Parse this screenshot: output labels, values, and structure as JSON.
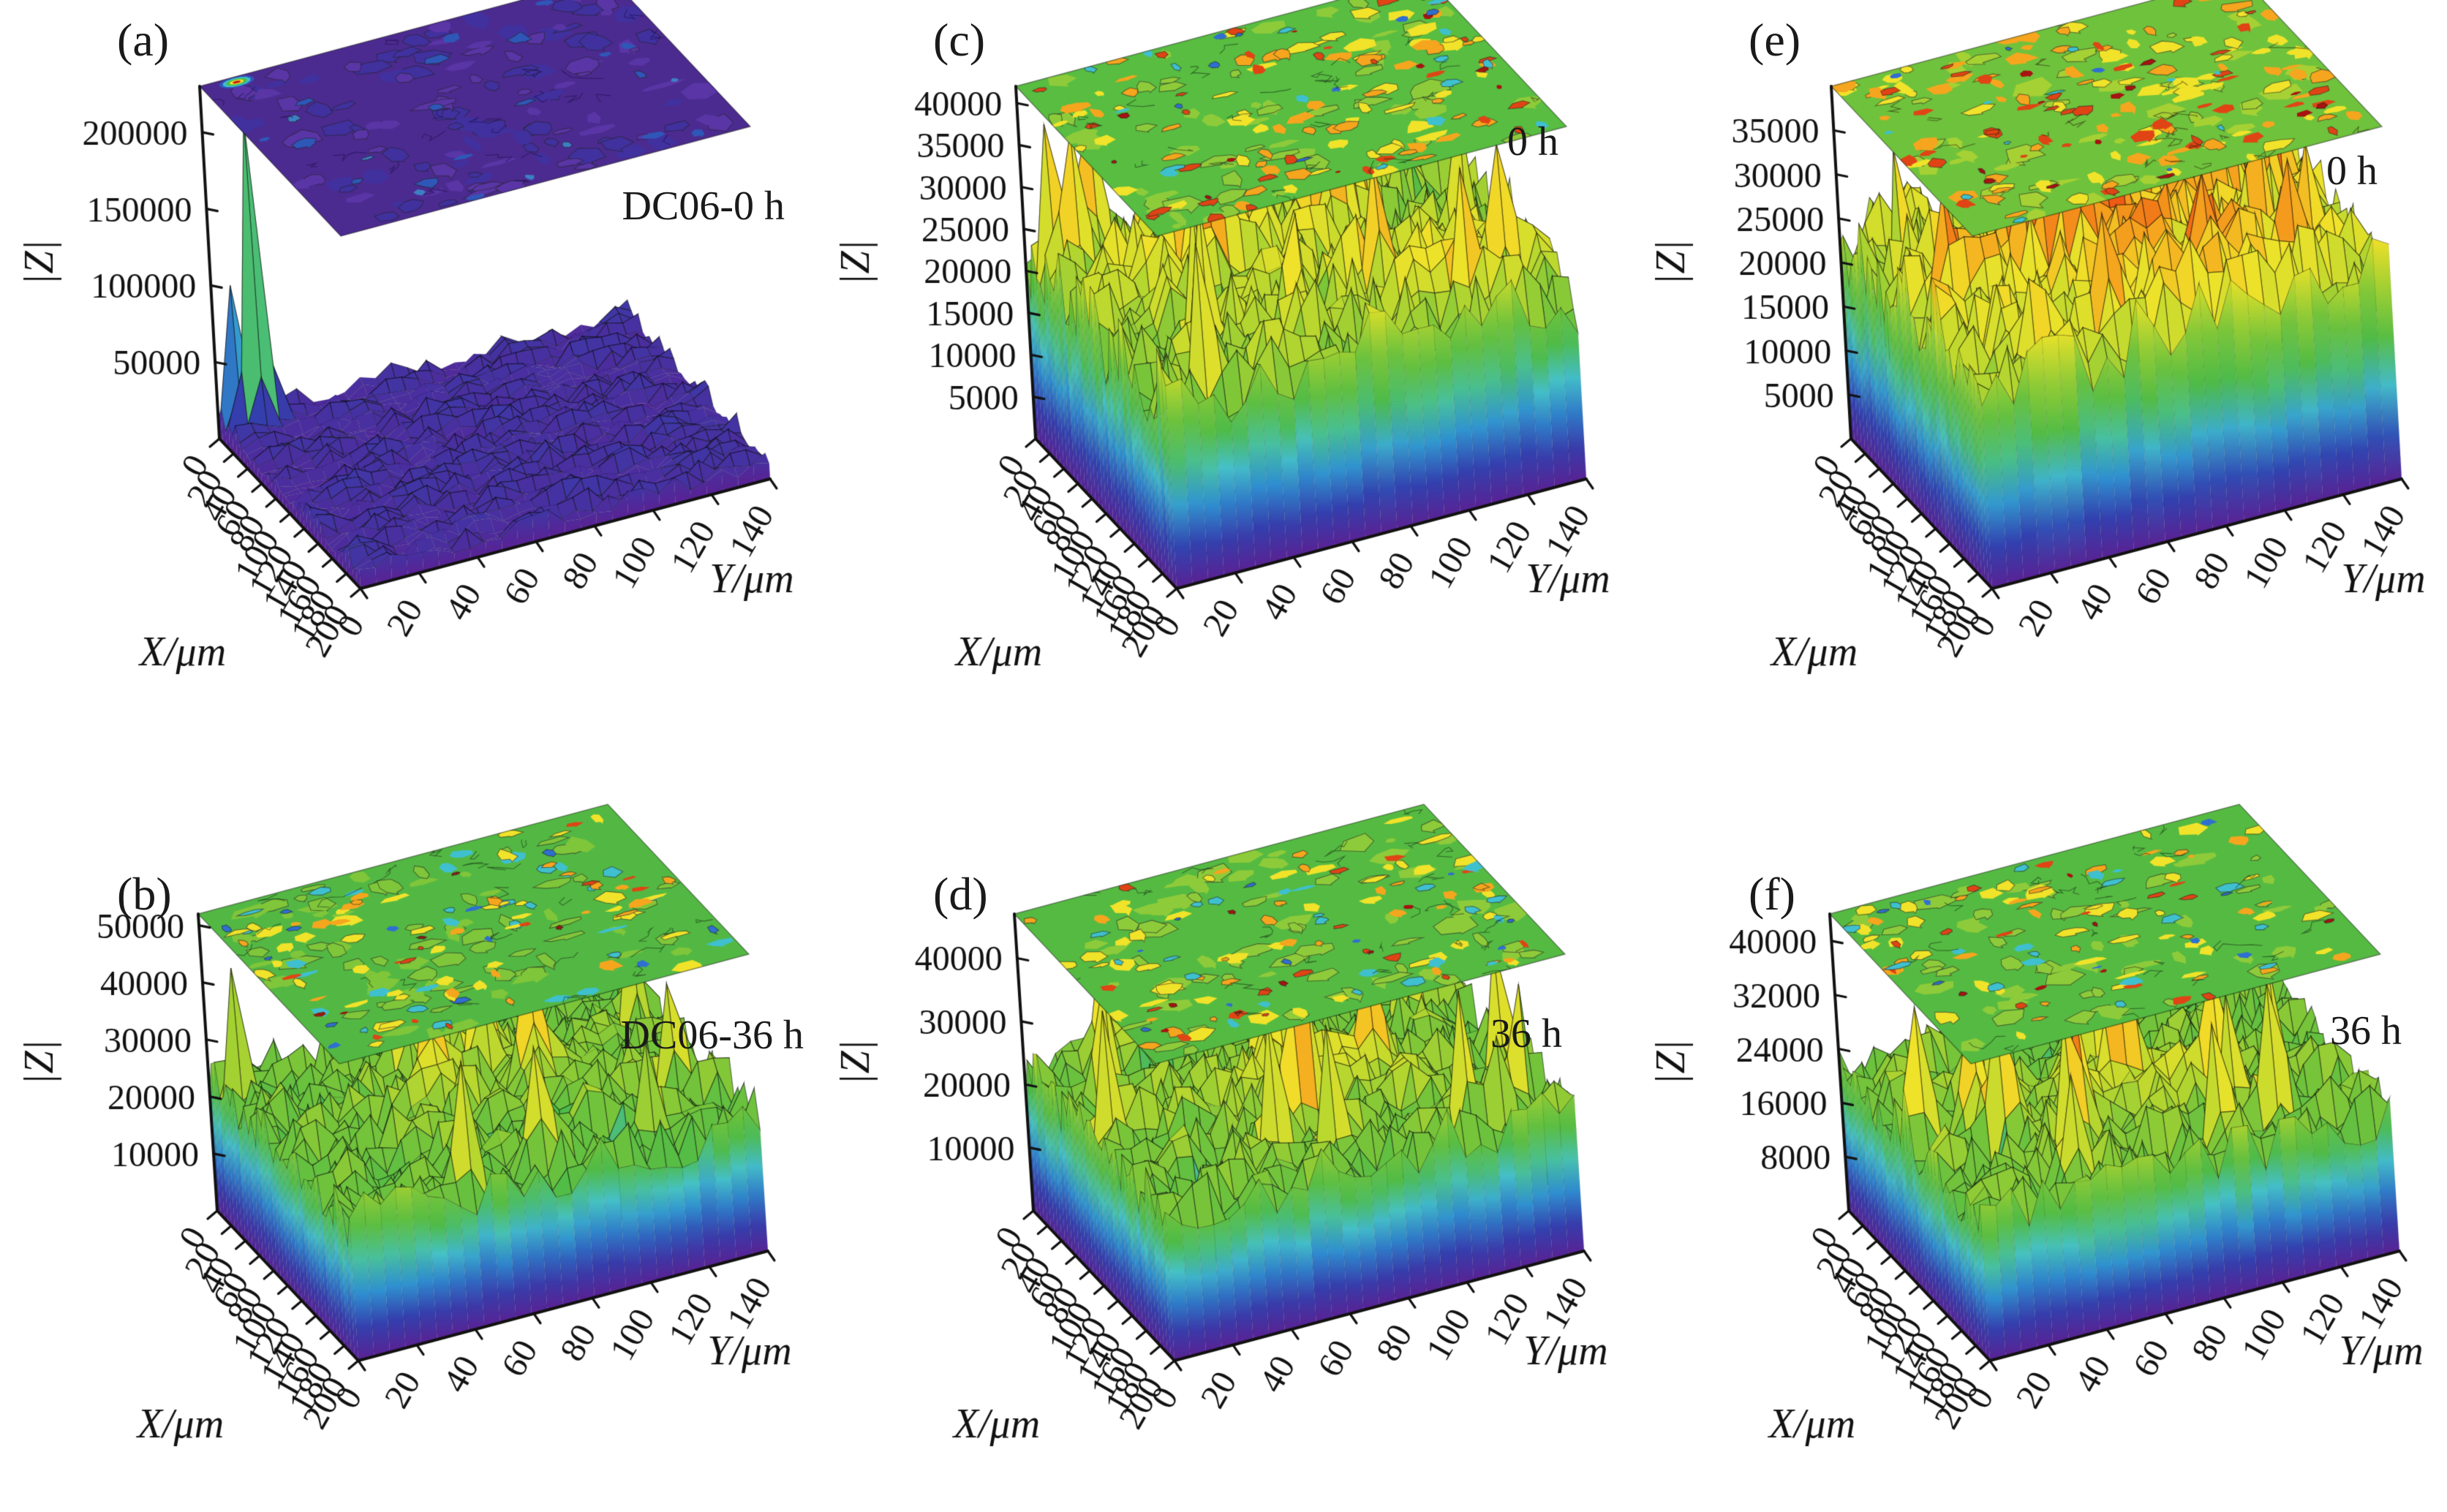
{
  "figure": {
    "x_label": "X/μm",
    "y_label": "Y/μm",
    "z_label": "|Z|",
    "x_ticks": [
      0,
      20,
      40,
      60,
      80,
      100,
      120,
      140,
      160,
      180,
      200
    ],
    "y_ticks": [
      0,
      20,
      40,
      60,
      80,
      100,
      120,
      140
    ]
  },
  "panels": [
    {
      "id": "a",
      "label": "(a)",
      "annotation": "DC06-0 h",
      "x_label": "X/μm",
      "y_label": "Y/μm",
      "z_label": "|Z|",
      "x_ticks": [
        0,
        20,
        40,
        60,
        80,
        100,
        120,
        140,
        160,
        180,
        200
      ],
      "y_ticks": [
        0,
        20,
        40,
        60,
        80,
        100,
        120,
        140
      ],
      "z_ticks": [
        50000,
        100000,
        150000,
        200000
      ],
      "z_top": 230000,
      "surface": {
        "seed": 101,
        "base": 0.055,
        "variance": 0.03,
        "spike_count": 0,
        "spike_amp": 0,
        "dip_count": 0,
        "fixed_spikes": [
          [
            3,
            2,
            0.92
          ],
          [
            1,
            1,
            0.4
          ]
        ],
        "hot_spots": []
      },
      "slab": {
        "base_color": "#4c2b90",
        "squiggle": "rgba(25,12,70,0.55)",
        "ring": true,
        "spots": [
          [
            "#41319f",
            70,
            0.012,
            0.05
          ],
          [
            "#5a35a5",
            60,
            0.012,
            0.05
          ],
          [
            "#2f57b8",
            18,
            0.01,
            0.03
          ],
          [
            "#3d7fc4",
            6,
            0.008,
            0.02
          ]
        ]
      }
    },
    {
      "id": "b",
      "label": "(b)",
      "annotation": "DC06-36 h",
      "x_label": "X/μm",
      "y_label": "Y/μm",
      "z_label": "|Z|",
      "x_ticks": [
        0,
        20,
        40,
        60,
        80,
        100,
        120,
        140,
        160,
        180,
        200
      ],
      "y_ticks": [
        0,
        20,
        40,
        60,
        80,
        100,
        120,
        140
      ],
      "z_ticks": [
        10000,
        20000,
        30000,
        40000,
        50000
      ],
      "z_top": 52000,
      "surface": {
        "seed": 202,
        "base": 0.48,
        "variance": 0.09,
        "spike_count": 14,
        "spike_amp": 0.42,
        "dip_count": 8,
        "fixed_spikes": [],
        "hot_spots": [
          [
            20,
            13,
            0.1,
            9
          ]
        ]
      },
      "slab": {
        "base_color": "#53b843",
        "squiggle": "rgba(20,40,20,0.55)",
        "ring": false,
        "spots": [
          [
            "#7fc63a",
            80,
            0.012,
            0.05
          ],
          [
            "#3fc0cf",
            30,
            0.01,
            0.035
          ],
          [
            "#2f6fd0",
            14,
            0.008,
            0.025
          ],
          [
            "#f0e32a",
            40,
            0.01,
            0.04
          ],
          [
            "#f5a61e",
            22,
            0.008,
            0.03
          ],
          [
            "#e04414",
            12,
            0.006,
            0.022
          ],
          [
            "#8e1d12",
            5,
            0.005,
            0.014
          ]
        ]
      }
    },
    {
      "id": "c",
      "label": "(c)",
      "annotation": "0 h",
      "x_label": "X/μm",
      "y_label": "Y/μm",
      "z_label": "|Z|",
      "x_ticks": [
        0,
        20,
        40,
        60,
        80,
        100,
        120,
        140,
        160,
        180,
        200
      ],
      "y_ticks": [
        0,
        20,
        40,
        60,
        80,
        100,
        120,
        140
      ],
      "z_ticks": [
        5000,
        10000,
        15000,
        20000,
        25000,
        30000,
        35000,
        40000
      ],
      "z_top": 42000,
      "surface": {
        "seed": 303,
        "base": 0.54,
        "variance": 0.11,
        "spike_count": 20,
        "spike_amp": 0.45,
        "dip_count": 6,
        "fixed_spikes": [],
        "hot_spots": [
          [
            15,
            8,
            0.16,
            7
          ],
          [
            30,
            18,
            0.12,
            8
          ]
        ]
      },
      "slab": {
        "base_color": "#58bd41",
        "squiggle": "rgba(20,40,20,0.55)",
        "ring": false,
        "spots": [
          [
            "#8ecb3a",
            60,
            0.012,
            0.05
          ],
          [
            "#f0e32a",
            45,
            0.01,
            0.04
          ],
          [
            "#f5a61e",
            40,
            0.01,
            0.035
          ],
          [
            "#e04414",
            30,
            0.008,
            0.03
          ],
          [
            "#a61310",
            10,
            0.006,
            0.018
          ],
          [
            "#3fc0cf",
            16,
            0.008,
            0.03
          ],
          [
            "#2f6fd0",
            8,
            0.006,
            0.02
          ]
        ]
      }
    },
    {
      "id": "d",
      "label": "(d)",
      "annotation": "36 h",
      "x_label": "X/μm",
      "y_label": "Y/μm",
      "z_label": "|Z|",
      "x_ticks": [
        0,
        20,
        40,
        60,
        80,
        100,
        120,
        140,
        160,
        180,
        200
      ],
      "y_ticks": [
        0,
        20,
        40,
        60,
        80,
        100,
        120,
        140
      ],
      "z_ticks": [
        10000,
        20000,
        30000,
        40000
      ],
      "z_top": 47000,
      "surface": {
        "seed": 404,
        "base": 0.5,
        "variance": 0.1,
        "spike_count": 16,
        "spike_amp": 0.45,
        "dip_count": 7,
        "fixed_spikes": [],
        "hot_spots": [
          [
            22,
            12,
            0.12,
            8
          ]
        ]
      },
      "slab": {
        "base_color": "#55ba42",
        "squiggle": "rgba(20,40,20,0.55)",
        "ring": false,
        "spots": [
          [
            "#8ecb3a",
            70,
            0.012,
            0.05
          ],
          [
            "#f0e32a",
            40,
            0.01,
            0.04
          ],
          [
            "#f5a61e",
            26,
            0.008,
            0.03
          ],
          [
            "#e04414",
            16,
            0.007,
            0.026
          ],
          [
            "#a61310",
            7,
            0.006,
            0.016
          ],
          [
            "#3fc0cf",
            22,
            0.008,
            0.03
          ],
          [
            "#2f6fd0",
            10,
            0.006,
            0.02
          ]
        ]
      }
    },
    {
      "id": "e",
      "label": "(e)",
      "annotation": "0 h",
      "x_label": "X/μm",
      "y_label": "Y/μm",
      "z_label": "|Z|",
      "x_ticks": [
        0,
        20,
        40,
        60,
        80,
        100,
        120,
        140,
        160,
        180,
        200
      ],
      "y_ticks": [
        0,
        20,
        40,
        60,
        80,
        100,
        120,
        140
      ],
      "z_ticks": [
        5000,
        10000,
        15000,
        20000,
        25000,
        30000,
        35000
      ],
      "z_top": 40000,
      "surface": {
        "seed": 505,
        "base": 0.6,
        "variance": 0.12,
        "spike_count": 18,
        "spike_amp": 0.38,
        "dip_count": 4,
        "fixed_spikes": [],
        "hot_spots": [
          [
            22,
            10,
            0.18,
            9
          ],
          [
            34,
            16,
            0.15,
            7
          ],
          [
            12,
            18,
            0.12,
            8
          ]
        ]
      },
      "slab": {
        "base_color": "#6fc23c",
        "squiggle": "rgba(40,30,10,0.55)",
        "ring": false,
        "spots": [
          [
            "#a5d134",
            50,
            0.012,
            0.05
          ],
          [
            "#f0e32a",
            55,
            0.01,
            0.04
          ],
          [
            "#f5a61e",
            50,
            0.01,
            0.04
          ],
          [
            "#e04414",
            40,
            0.008,
            0.032
          ],
          [
            "#a61310",
            14,
            0.006,
            0.02
          ],
          [
            "#3fc0cf",
            10,
            0.007,
            0.024
          ],
          [
            "#2f6fd0",
            4,
            0.006,
            0.016
          ]
        ]
      }
    },
    {
      "id": "f",
      "label": "(f)",
      "annotation": "36 h",
      "x_label": "X/μm",
      "y_label": "Y/μm",
      "z_label": "|Z|",
      "x_ticks": [
        0,
        20,
        40,
        60,
        80,
        100,
        120,
        140,
        160,
        180,
        200
      ],
      "y_ticks": [
        0,
        20,
        40,
        60,
        80,
        100,
        120,
        140
      ],
      "z_ticks": [
        8000,
        16000,
        24000,
        32000,
        40000
      ],
      "z_top": 44000,
      "surface": {
        "seed": 606,
        "base": 0.5,
        "variance": 0.1,
        "spike_count": 15,
        "spike_amp": 0.46,
        "dip_count": 6,
        "fixed_spikes": [],
        "hot_spots": [
          [
            24,
            12,
            0.12,
            8
          ]
        ]
      },
      "slab": {
        "base_color": "#55ba42",
        "squiggle": "rgba(20,40,20,0.55)",
        "ring": false,
        "spots": [
          [
            "#8ecb3a",
            60,
            0.012,
            0.05
          ],
          [
            "#f0e32a",
            38,
            0.01,
            0.04
          ],
          [
            "#f5a61e",
            24,
            0.008,
            0.03
          ],
          [
            "#e04414",
            14,
            0.007,
            0.026
          ],
          [
            "#a61310",
            6,
            0.006,
            0.016
          ],
          [
            "#3fc0cf",
            18,
            0.008,
            0.03
          ],
          [
            "#2f6fd0",
            8,
            0.006,
            0.02
          ]
        ]
      }
    }
  ],
  "chart_data": [
    {
      "type": "surface",
      "panel": "(a)",
      "annotation": "DC06-0 h",
      "xlabel": "X/μm",
      "ylabel": "Y/μm",
      "zlabel": "|Z|",
      "x_range": [
        0,
        200
      ],
      "x_tick_step": 20,
      "y_range": [
        0,
        140
      ],
      "y_tick_step": 20,
      "z_ticks": [
        50000,
        100000,
        150000,
        200000
      ],
      "z_axis_top": 230000,
      "surface_summary": "Flat low violet plateau |Z| ≈ 10000–20000 across the whole map with a single narrow needle peak reaching ≈ 220000 near X≈10, Y≈5; small secondary peak ≈ 90000 at the front-left edge. Top projected contour map is nearly uniform violet-purple."
    },
    {
      "type": "surface",
      "panel": "(b)",
      "annotation": "DC06-36 h",
      "xlabel": "X/μm",
      "ylabel": "Y/μm",
      "zlabel": "|Z|",
      "x_range": [
        0,
        200
      ],
      "x_tick_step": 20,
      "y_range": [
        0,
        140
      ],
      "y_tick_step": 20,
      "z_ticks": [
        10000,
        20000,
        30000,
        40000,
        50000
      ],
      "z_axis_top": 52000,
      "surface_summary": "Rough green surface, bulk |Z| ≈ 20000–28000 with many narrow red spikes to ≈ 42000–48000 and cyan/blue dips to ≈ 8000; rainbow side wall down to violet at the base. Top contour map green with scattered blue, yellow, orange and red patches."
    },
    {
      "type": "surface",
      "panel": "(c)",
      "annotation": "0 h",
      "xlabel": "X/μm",
      "ylabel": "Y/μm",
      "zlabel": "|Z|",
      "x_range": [
        0,
        200
      ],
      "x_tick_step": 20,
      "y_range": [
        0,
        140
      ],
      "y_tick_step": 20,
      "z_ticks": [
        5000,
        10000,
        15000,
        20000,
        25000,
        30000,
        35000,
        40000
      ],
      "z_axis_top": 42000,
      "surface_summary": "Very spiky surface, bulk |Z| ≈ 18000–26000, dense orange/red needles to ≈ 36000–40000, dips to ≈ 7000; top contour map green with many red-orange patches and a few cyan spots."
    },
    {
      "type": "surface",
      "panel": "(d)",
      "annotation": "36 h",
      "xlabel": "X/μm",
      "ylabel": "Y/μm",
      "zlabel": "|Z|",
      "x_range": [
        0,
        200
      ],
      "x_tick_step": 20,
      "y_range": [
        0,
        140
      ],
      "y_tick_step": 20,
      "z_ticks": [
        10000,
        20000,
        30000,
        40000
      ],
      "z_axis_top": 47000,
      "surface_summary": "Spiky green surface, bulk |Z| ≈ 20000–27000 with red needles to ≈ 38000–44000 and cyan dips; rainbow side wall. Top contour map green with moderate red/orange and cyan patches."
    },
    {
      "type": "surface",
      "panel": "(e)",
      "annotation": "0 h",
      "xlabel": "X/μm",
      "ylabel": "Y/μm",
      "zlabel": "|Z|",
      "x_range": [
        0,
        200
      ],
      "x_tick_step": 20,
      "y_range": [
        0,
        140
      ],
      "y_tick_step": 20,
      "z_ticks": [
        5000,
        10000,
        15000,
        20000,
        25000,
        30000,
        35000
      ],
      "z_axis_top": 40000,
      "surface_summary": "High rough surface dominated by orange/red, bulk |Z| ≈ 22000–30000 with broad red ridges to ≈ 34000–38000 and local dips to ≈ 5000; top contour map yellow-green densely covered with red patches."
    },
    {
      "type": "surface",
      "panel": "(f)",
      "annotation": "36 h",
      "xlabel": "X/μm",
      "ylabel": "Y/μm",
      "zlabel": "|Z|",
      "x_range": [
        0,
        200
      ],
      "x_tick_step": 20,
      "y_range": [
        0,
        140
      ],
      "y_tick_step": 20,
      "z_ticks": [
        8000,
        16000,
        24000,
        32000,
        40000
      ],
      "z_axis_top": 44000,
      "surface_summary": "Spiky green surface, bulk |Z| ≈ 20000–26000 with red needles to ≈ 38000–42000, cyan/blue dips; violet base wall. Top contour map green with scattered red, orange and cyan patches."
    }
  ]
}
